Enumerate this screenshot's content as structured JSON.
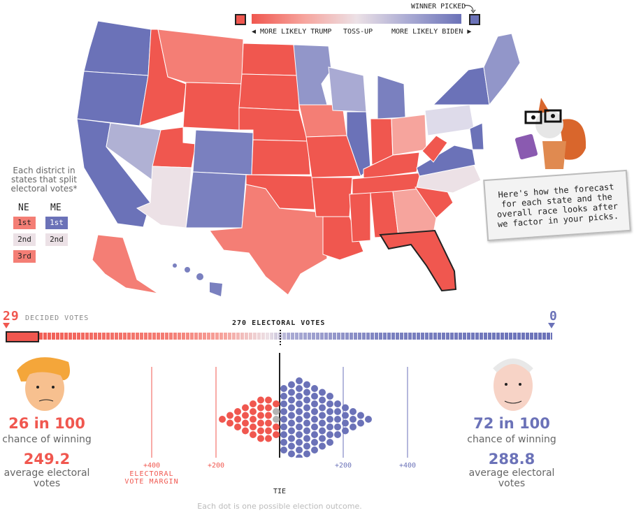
{
  "colors": {
    "trump": "#f0574f",
    "trump_light": "#f6a49d",
    "tossup": "#ece1e6",
    "biden_light": "#a9aad3",
    "biden": "#6b72b8",
    "gray": "#b3b3b3"
  },
  "legend": {
    "winner_picked": "WINNER PICKED",
    "more_trump": "◀ MORE LIKELY TRUMP",
    "tossup": "TOSS-UP",
    "more_biden": "MORE LIKELY BIDEN ▶"
  },
  "districts": {
    "caption": "Each district in states that split electoral votes*",
    "ne_header": "NE",
    "me_header": "ME",
    "ne": [
      "1st",
      "2nd",
      "3rd"
    ],
    "me": [
      "1st",
      "2nd"
    ]
  },
  "mascot_bubble": "Here's how the forecast for each state and the overall race looks after we factor in your picks.",
  "bar": {
    "trump_decided": "29",
    "decided_label": "DECIDED VOTES",
    "biden_decided": "0",
    "center_label": "270 ELECTORAL VOTES"
  },
  "trump": {
    "chance": "26 in 100",
    "chance_label": "chance of winning",
    "avg": "249.2",
    "avg_label": "average electoral votes"
  },
  "biden": {
    "chance": "72 in 100",
    "chance_label": "chance of winning",
    "avg": "288.8",
    "avg_label": "average electoral votes"
  },
  "margin_axis": {
    "trump_400": "+400",
    "trump_400_sub": "ELECTORAL VOTE MARGIN",
    "trump_200": "+200",
    "biden_200": "+200",
    "biden_400": "+400",
    "tie": "TIE"
  },
  "footnote": "Each dot is one possible election outcome.",
  "icons": [
    "caret-down-icon",
    "curved-arrow-icon",
    "fox-mascot-icon",
    "trump-portrait-icon",
    "biden-portrait-icon"
  ]
}
